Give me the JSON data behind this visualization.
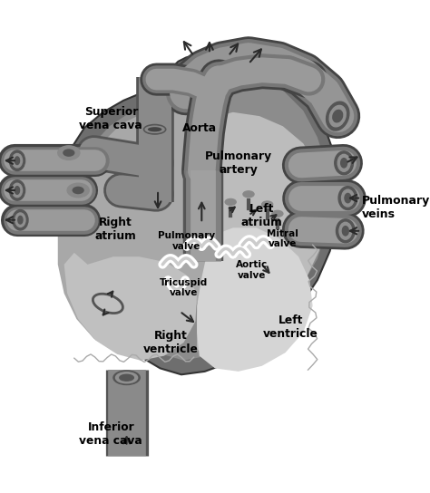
{
  "bg_color": "#ffffff",
  "fig_width": 4.74,
  "fig_height": 5.44,
  "dpi": 100,
  "labels": {
    "superior_vena_cava": "Superior\nvena cava",
    "inferior_vena_cava": "Inferior\nvena cava",
    "aorta": "Aorta",
    "pulmonary_artery": "Pulmonary\nartery",
    "pulmonary_veins": "Pulmonary\nveins",
    "right_atrium": "Right\natrium",
    "left_atrium": "Left\natrium",
    "right_ventricle": "Right\nventricle",
    "left_ventricle": "Left\nventricle",
    "tricuspid_valve": "Tricuspid\nvalve",
    "pulmonary_valve": "Pulmonary\nvalve",
    "mitral_valve": "Mitral\nvalve",
    "aortic_valve": "Aortic\nvalve"
  },
  "colors": {
    "dark_outer": "#6e6e6e",
    "mid_gray": "#8c8c8c",
    "light_gray": "#a8a8a8",
    "lighter_gray": "#bcbcbc",
    "lightest_gray": "#d2d2d2",
    "vessel_dark": "#707070",
    "vessel_mid": "#8a8a8a",
    "vessel_light": "#a0a0a0",
    "white": "#ffffff",
    "black": "#000000",
    "arrow": "#2a2a2a"
  }
}
